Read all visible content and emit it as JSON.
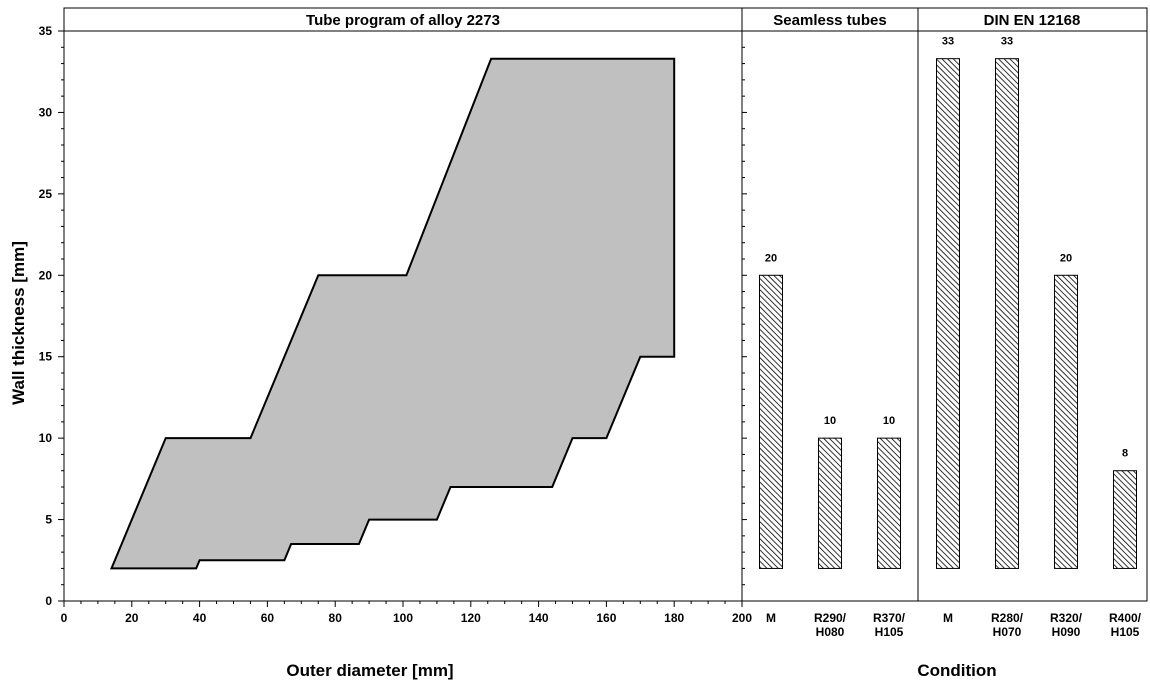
{
  "chart_data": [
    {
      "type": "area",
      "title": "Tube program of alloy 2273",
      "xlabel": "Outer diameter [mm]",
      "ylabel": "Wall thickness [mm]",
      "xlim": [
        0,
        200
      ],
      "ylim": [
        0,
        35
      ],
      "x_ticks": [
        0,
        20,
        40,
        60,
        80,
        100,
        120,
        140,
        160,
        180,
        200
      ],
      "y_ticks": [
        0,
        5,
        10,
        15,
        20,
        25,
        30,
        35
      ],
      "grid": false,
      "fill_color": "#c0c0c0",
      "polygon": [
        {
          "x": 14,
          "y": 2
        },
        {
          "x": 30,
          "y": 10
        },
        {
          "x": 55,
          "y": 10
        },
        {
          "x": 75,
          "y": 20
        },
        {
          "x": 101,
          "y": 20
        },
        {
          "x": 126,
          "y": 33.3
        },
        {
          "x": 180,
          "y": 33.3
        },
        {
          "x": 180,
          "y": 15
        },
        {
          "x": 170,
          "y": 15
        },
        {
          "x": 160,
          "y": 10
        },
        {
          "x": 150,
          "y": 10
        },
        {
          "x": 144,
          "y": 7
        },
        {
          "x": 114,
          "y": 7
        },
        {
          "x": 110,
          "y": 5
        },
        {
          "x": 90,
          "y": 5
        },
        {
          "x": 87,
          "y": 3.5
        },
        {
          "x": 67,
          "y": 3.5
        },
        {
          "x": 65,
          "y": 2.5
        },
        {
          "x": 40,
          "y": 2.5
        },
        {
          "x": 39,
          "y": 2
        }
      ]
    },
    {
      "type": "bar",
      "title": "Seamless tubes",
      "xlabel": "Condition",
      "categories": [
        [
          "M"
        ],
        [
          "R290/",
          "H080"
        ],
        [
          "R370/",
          "H105"
        ]
      ],
      "values": [
        20,
        10,
        10
      ],
      "base": 2,
      "data_labels": [
        "20",
        "10",
        "10"
      ],
      "ylim": [
        0,
        35
      ]
    },
    {
      "type": "bar",
      "title": "DIN EN 12168",
      "xlabel": "Condition",
      "categories": [
        [
          "M"
        ],
        [
          "R280/",
          "H070"
        ],
        [
          "R320/",
          "H090"
        ],
        [
          "R400/",
          "H105"
        ]
      ],
      "values": [
        33.3,
        33.3,
        20,
        8
      ],
      "base": 2,
      "data_labels": [
        "33",
        "33",
        "20",
        "8"
      ],
      "ylim": [
        0,
        35
      ]
    }
  ],
  "shared_xlabel_right": "Condition"
}
